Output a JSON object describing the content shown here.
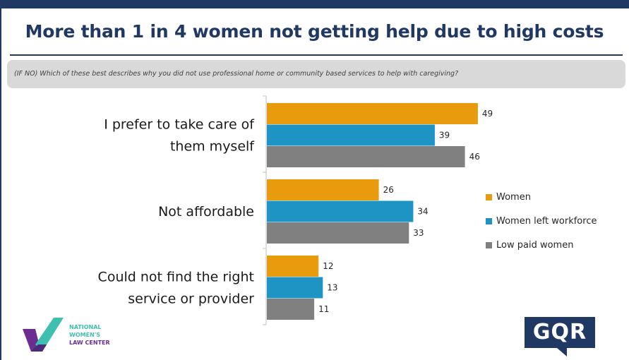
{
  "title": "More than 1 in 4 women not getting help due to high costs",
  "question": "(IF NO) Which of these best describes why you did not use professional home or community based services to help with caregiving?",
  "chart_data": {
    "type": "bar",
    "orientation": "horizontal",
    "categories": [
      [
        "I prefer to take care of",
        "them myself"
      ],
      [
        "Not affordable"
      ],
      [
        "Could not find the right",
        "service or provider"
      ]
    ],
    "series": [
      {
        "name": "Women",
        "color": "#e89b0c",
        "values": [
          49,
          26,
          12
        ]
      },
      {
        "name": "Women left workforce",
        "color": "#1e94c4",
        "values": [
          39,
          34,
          13
        ]
      },
      {
        "name": "Low paid women",
        "color": "#808080",
        "values": [
          46,
          33,
          11
        ]
      }
    ],
    "xlim": [
      0,
      70
    ],
    "grid": false,
    "legend": "right",
    "data_labels": true
  },
  "logos": {
    "nwlc": [
      "NATIONAL",
      "WOMEN'S",
      "LAW CENTER"
    ],
    "gqr": "GQR"
  },
  "colors": {
    "navy": "#1f3864",
    "nwlc_purple": "#6b2d8f",
    "nwlc_teal": "#3fbfb0"
  }
}
